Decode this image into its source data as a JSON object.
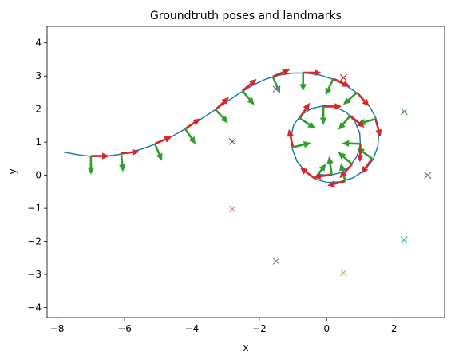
{
  "chart_data": {
    "type": "scatter",
    "title": "Groundtruth poses and landmarks",
    "xlabel": "x",
    "ylabel": "y",
    "xlim": [
      -8.3,
      3.5
    ],
    "ylim": [
      -4.3,
      4.5
    ],
    "xticks": [
      -8,
      -6,
      -4,
      -2,
      0,
      2
    ],
    "yticks": [
      -4,
      -3,
      -2,
      -1,
      0,
      1,
      2,
      3,
      4
    ],
    "xtick_labels": [
      "−8",
      "−6",
      "−4",
      "−2",
      "0",
      "2"
    ],
    "ytick_labels": [
      "−4",
      "−3",
      "−2",
      "−1",
      "0",
      "1",
      "2",
      "3",
      "4"
    ],
    "grid": false,
    "trajectory": {
      "color": "#1f77b4",
      "points": [
        [
          -7.8,
          0.7
        ],
        [
          -7.4,
          0.62
        ],
        [
          -7.0,
          0.57
        ],
        [
          -6.6,
          0.57
        ],
        [
          -6.2,
          0.62
        ],
        [
          -5.8,
          0.7
        ],
        [
          -5.4,
          0.82
        ],
        [
          -5.0,
          0.98
        ],
        [
          -4.6,
          1.17
        ],
        [
          -4.2,
          1.4
        ],
        [
          -3.8,
          1.65
        ],
        [
          -3.4,
          1.92
        ],
        [
          -3.0,
          2.2
        ],
        [
          -2.6,
          2.47
        ],
        [
          -2.2,
          2.72
        ],
        [
          -1.8,
          2.91
        ],
        [
          -1.4,
          3.03
        ],
        [
          -1.0,
          3.09
        ],
        [
          -0.6,
          3.09
        ],
        [
          -0.2,
          3.03
        ],
        [
          0.2,
          2.9
        ],
        [
          0.6,
          2.7
        ],
        [
          0.95,
          2.45
        ],
        [
          1.25,
          2.12
        ],
        [
          1.45,
          1.75
        ],
        [
          1.55,
          1.32
        ],
        [
          1.52,
          0.88
        ],
        [
          1.38,
          0.48
        ],
        [
          1.12,
          0.15
        ],
        [
          0.78,
          -0.08
        ],
        [
          0.4,
          -0.2
        ],
        [
          0.02,
          -0.22
        ],
        [
          -0.32,
          -0.12
        ],
        [
          -0.62,
          0.1
        ],
        [
          -0.88,
          0.42
        ],
        [
          -1.02,
          0.8
        ],
        [
          -1.06,
          1.18
        ],
        [
          -0.98,
          1.52
        ],
        [
          -0.76,
          1.82
        ],
        [
          -0.45,
          2.02
        ],
        [
          -0.1,
          2.1
        ],
        [
          0.26,
          2.06
        ],
        [
          0.58,
          1.9
        ],
        [
          0.84,
          1.62
        ],
        [
          0.98,
          1.28
        ],
        [
          1.0,
          0.92
        ],
        [
          0.9,
          0.58
        ],
        [
          0.7,
          0.28
        ],
        [
          0.42,
          0.08
        ],
        [
          0.1,
          0.0
        ],
        [
          -0.2,
          0.02
        ]
      ]
    },
    "poses": [
      [
        -7.0,
        0.58,
        0
      ],
      [
        -6.1,
        0.66,
        0.1
      ],
      [
        -5.1,
        0.95,
        0.4
      ],
      [
        -4.2,
        1.4,
        0.6
      ],
      [
        -3.3,
        1.98,
        0.75
      ],
      [
        -2.5,
        2.55,
        0.7
      ],
      [
        -1.6,
        2.98,
        0.4
      ],
      [
        -0.7,
        3.1,
        0.0
      ],
      [
        0.2,
        2.92,
        -0.45
      ],
      [
        0.9,
        2.5,
        -0.85
      ],
      [
        1.45,
        1.7,
        -1.3
      ],
      [
        1.35,
        0.5,
        -2.2
      ],
      [
        0.55,
        -0.18,
        -2.9
      ],
      [
        -0.35,
        -0.1,
        2.5
      ],
      [
        -1.0,
        0.85,
        1.8
      ],
      [
        -0.8,
        1.72,
        1.0
      ],
      [
        -0.1,
        2.08,
        0.0
      ],
      [
        0.7,
        1.8,
        -0.7
      ],
      [
        1.0,
        0.95,
        -1.6
      ],
      [
        0.75,
        0.33,
        -2.3
      ],
      [
        0.15,
        0.02,
        -3.0
      ]
    ],
    "pose_colors": {
      "heading": "#d62728",
      "orientation": "#2ca02c"
    },
    "landmarks": [
      {
        "x": 0.5,
        "y": 2.95,
        "color": "#d62728"
      },
      {
        "x": -1.5,
        "y": 2.6,
        "color": "#9467bd"
      },
      {
        "x": 2.3,
        "y": 1.92,
        "color": "#2ca02c"
      },
      {
        "x": -2.8,
        "y": 1.02,
        "color": "#8c564b"
      },
      {
        "x": 3.0,
        "y": 0.0,
        "color": "#1f77b4"
      },
      {
        "x": 3.0,
        "y": 0.0,
        "color": "#7f7f7f"
      },
      {
        "x": -2.8,
        "y": -1.02,
        "color": "#e377c2"
      },
      {
        "x": 2.3,
        "y": -1.95,
        "color": "#17becf"
      },
      {
        "x": -1.5,
        "y": -2.6,
        "color": "#7f7f7f"
      },
      {
        "x": 0.5,
        "y": -2.95,
        "color": "#bcbd22"
      }
    ]
  }
}
